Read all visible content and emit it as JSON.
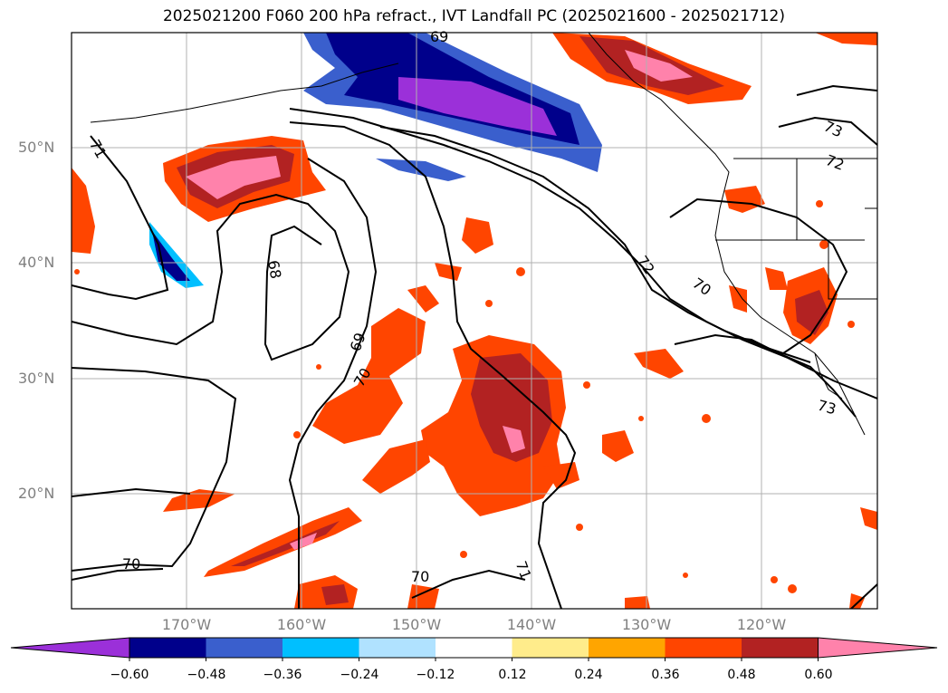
{
  "title": "2025021200 F060 200 hPa refract., IVT Landfall PC (2025021600 - 2025021712)",
  "lat_labels": [
    "50°N",
    "40°N",
    "30°N",
    "20°N"
  ],
  "lon_labels": [
    "170°W",
    "160°W",
    "150°W",
    "140°W",
    "130°W",
    "120°W"
  ],
  "colorbar": {
    "ticks": [
      "−0.60",
      "−0.48",
      "−0.36",
      "−0.24",
      "−0.12",
      "0.12",
      "0.24",
      "0.36",
      "0.48",
      "0.60"
    ],
    "colors": [
      "#9b30d9",
      "#00008b",
      "#3a5fcd",
      "#00bfff",
      "#b0e2ff",
      "#ffffff",
      "#ffec8b",
      "#ffa500",
      "#ff4500",
      "#b22222",
      "#ff82ab"
    ]
  },
  "contour_labels": [
    "71",
    "68",
    "69",
    "70",
    "70",
    "72",
    "70",
    "73",
    "72",
    "71",
    "73",
    "69",
    "70"
  ]
}
